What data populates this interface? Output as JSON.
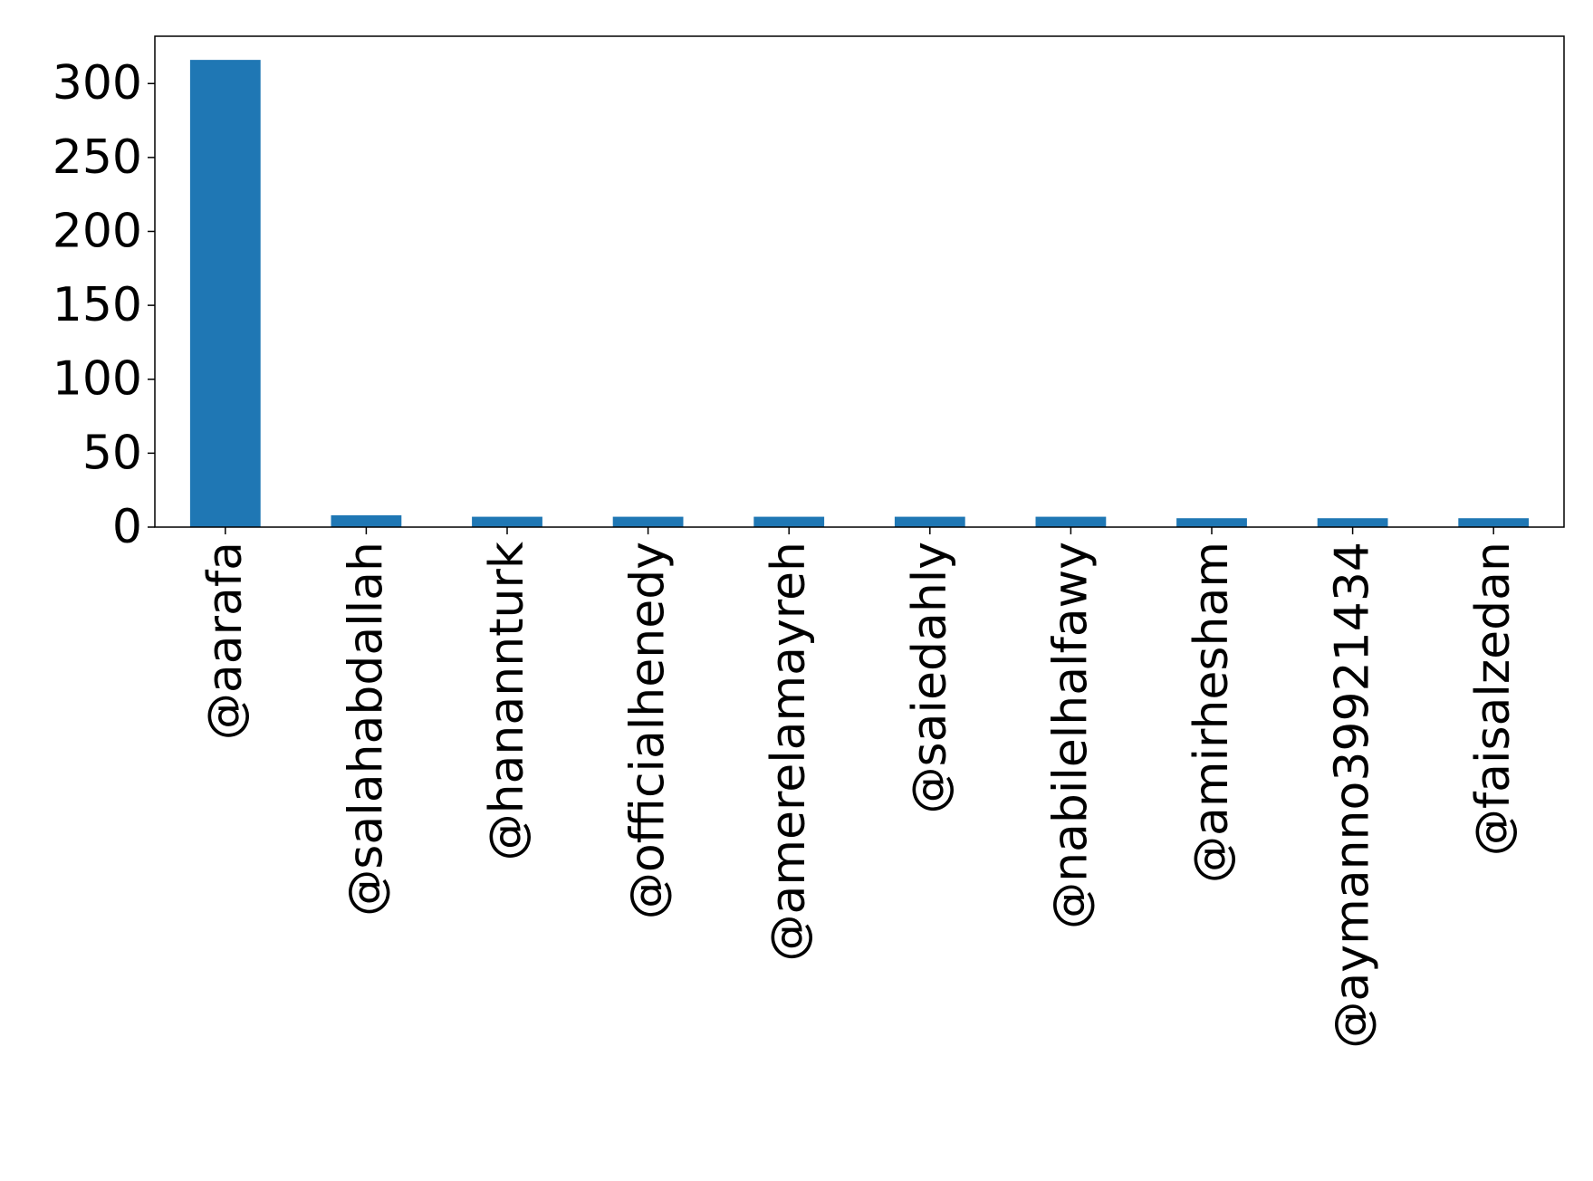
{
  "chart_data": {
    "type": "bar",
    "title": "",
    "xlabel": "",
    "ylabel": "",
    "categories": [
      "@aarafa",
      "@salahabdallah",
      "@hanannturk",
      "@officialhenedy",
      "@amerelamayreh",
      "@saiedahly",
      "@nabilelhalfawy",
      "@amirhesham",
      "@aymanno39921434",
      "@faisalzedan"
    ],
    "values": [
      316,
      8,
      7,
      7,
      7,
      7,
      7,
      6,
      6,
      6
    ],
    "ylim": [
      0,
      332
    ],
    "yticks": [
      0,
      50,
      100,
      150,
      200,
      250,
      300
    ],
    "grid": false,
    "legend": "none",
    "bar_color": "#1f77b4"
  }
}
